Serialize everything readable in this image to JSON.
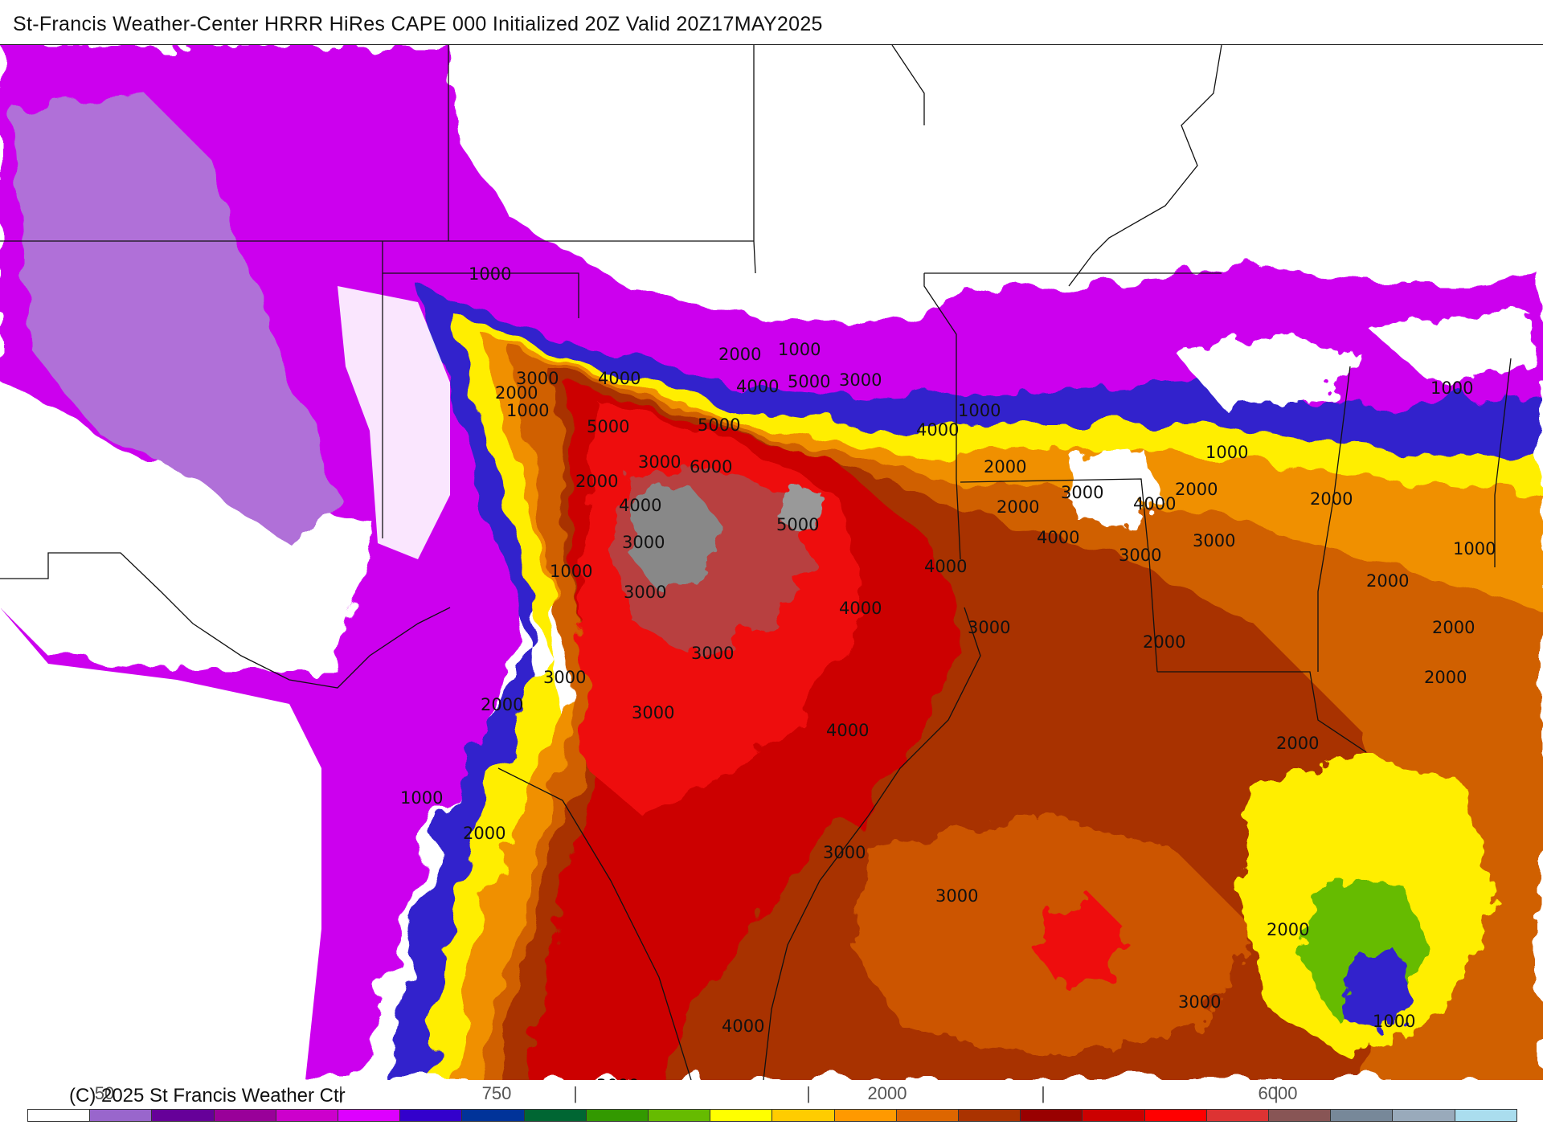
{
  "header": {
    "title": "St-Francis Weather-Center HRRR HiRes CAPE  000 Initialized  20Z Valid 20Z17MAY2025"
  },
  "map": {
    "field": "CAPE",
    "contour_labels": [
      "1000",
      "2000",
      "3000",
      "4000",
      "5000",
      "6000",
      "1000",
      "2000",
      "3000",
      "4000",
      "5000",
      "1000",
      "2000",
      "3000",
      "4000",
      "5000",
      "1000",
      "2000",
      "3000",
      "4000",
      "5000",
      "1000",
      "2000",
      "3000",
      "4000",
      "1000",
      "2000",
      "3000",
      "4000",
      "1000",
      "2000",
      "3000",
      "4000",
      "1000",
      "2000",
      "3000",
      "4000",
      "2000",
      "3000",
      "2000",
      "3000",
      "2000",
      "3000",
      "2000",
      "3000",
      "2000",
      "1000",
      "2000",
      "2000",
      "1000",
      "2000",
      "3000",
      "4000",
      "3000",
      "4000",
      "3000",
      "3000"
    ]
  },
  "colorbar": {
    "scale_labels": [
      "50",
      "|",
      "750",
      "|",
      "|",
      "2000",
      "|",
      "6000",
      "|"
    ],
    "colors": [
      "#ffffff",
      "#9966cc",
      "#660099",
      "#990099",
      "#cc00cc",
      "#dd00ff",
      "#3300cc",
      "#003399",
      "#006633",
      "#339900",
      "#66bb00",
      "#ffff00",
      "#ffcc00",
      "#ff9900",
      "#dd6600",
      "#aa3300",
      "#990000",
      "#cc0000",
      "#ff0000",
      "#dd3333",
      "#885555",
      "#778899",
      "#99aabb",
      "#aaddee"
    ]
  },
  "footer": {
    "copyright": "(C) 2025 St Francis Weather Ctr"
  }
}
